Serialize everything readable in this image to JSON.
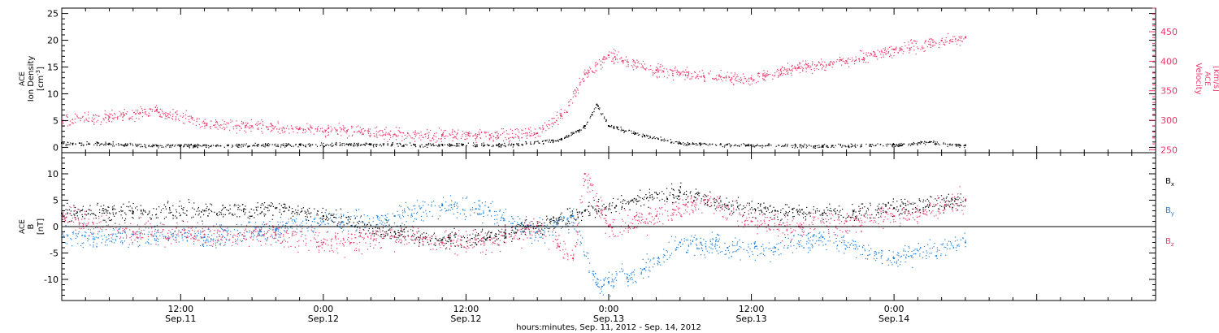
{
  "x_axis": {
    "ticks": [
      {
        "time": "Sep 11 12:00",
        "hour": 12,
        "label1": "12:00",
        "label2": "Sep.11"
      },
      {
        "time": "Sep 12 00:00",
        "hour": 24,
        "label1": "0:00",
        "label2": "Sep.12"
      },
      {
        "time": "Sep 12 12:00",
        "hour": 36,
        "label1": "12:00",
        "label2": "Sep.12"
      },
      {
        "time": "Sep 13 00:00",
        "hour": 48,
        "label1": "0:00",
        "label2": "Sep.13"
      },
      {
        "time": "Sep 13 12:00",
        "hour": 60,
        "label1": "12:00",
        "label2": "Sep.13"
      },
      {
        "time": "Sep 14 00:00",
        "hour": 72,
        "label1": "0:00",
        "label2": "Sep.14"
      }
    ],
    "title": "hours:minutes, Sep. 11, 2012 - Sep. 14, 2012",
    "range": [
      "Sep 11 02:00",
      "Sep 14 22:00"
    ]
  },
  "colors": {
    "density": "#000000",
    "velocity": "#e8386a",
    "bx": "#000000",
    "by": "#1a7ed8",
    "bz": "#e8386a"
  },
  "chart_data": [
    {
      "type": "scatter",
      "panel": "top",
      "left_axis": {
        "line1": "ACE",
        "line2": "Ion Density",
        "unit_base": "[cm",
        "unit_sup": "-3",
        "unit_end": "]",
        "ylim": [
          -1,
          26
        ],
        "ticks": [
          0,
          5,
          10,
          15,
          20,
          25
        ]
      },
      "right_axis": {
        "line1": "ACE",
        "line2": "Velocity",
        "unit": "[km/s]",
        "ylim": [
          245,
          490
        ],
        "ticks": [
          250,
          300,
          350,
          400,
          450
        ]
      },
      "series": [
        {
          "key": "density",
          "axis": "left",
          "x": [
            "Sep 11 02:00",
            "Sep 11 06:00",
            "Sep 11 10:00",
            "Sep 11 16:00",
            "Sep 11 22:00",
            "Sep 12 04:00",
            "Sep 12 10:00",
            "Sep 12 16:00",
            "Sep 12 20:00",
            "Sep 12 22:00",
            "Sep 12 23:00",
            "Sep 13 00:00",
            "Sep 13 03:00",
            "Sep 13 06:00",
            "Sep 13 12:00",
            "Sep 13 18:00",
            "Sep 14 00:00",
            "Sep 14 03:00",
            "Sep 14 06:00"
          ],
          "values": [
            0.8,
            0.7,
            0.3,
            0.4,
            0.5,
            0.6,
            0.5,
            0.5,
            1.5,
            4.0,
            8.0,
            4.0,
            2.2,
            0.8,
            0.4,
            0.3,
            0.5,
            1.0,
            0.4
          ]
        },
        {
          "key": "velocity",
          "axis": "right",
          "x": [
            "Sep 11 02:00",
            "Sep 11 06:00",
            "Sep 11 10:00",
            "Sep 11 14:00",
            "Sep 11 18:00",
            "Sep 11 22:00",
            "Sep 12 02:00",
            "Sep 12 06:00",
            "Sep 12 10:00",
            "Sep 12 14:00",
            "Sep 12 18:00",
            "Sep 12 20:00",
            "Sep 12 22:00",
            "Sep 13 00:00",
            "Sep 13 04:00",
            "Sep 13 08:00",
            "Sep 13 12:00",
            "Sep 13 16:00",
            "Sep 13 20:00",
            "Sep 14 00:00",
            "Sep 14 04:00",
            "Sep 14 06:00"
          ],
          "values": [
            300,
            305,
            318,
            295,
            290,
            285,
            282,
            276,
            275,
            275,
            278,
            308,
            378,
            410,
            385,
            375,
            370,
            390,
            400,
            420,
            435,
            440
          ]
        }
      ]
    },
    {
      "type": "scatter",
      "panel": "bottom",
      "left_axis": {
        "line1": "ACE",
        "line2": "B",
        "unit": "[nT]",
        "ylim": [
          -14,
          14
        ],
        "ticks": [
          -10,
          -5,
          0,
          5,
          10
        ]
      },
      "legend": [
        {
          "key": "bx",
          "text": "B",
          "sub": "x"
        },
        {
          "key": "by",
          "text": "B",
          "sub": "y"
        },
        {
          "key": "bz",
          "text": "B",
          "sub": "z"
        }
      ],
      "series": [
        {
          "key": "bx",
          "x": [
            "Sep 11 02:00",
            "Sep 11 08:00",
            "Sep 11 14:00",
            "Sep 11 20:00",
            "Sep 12 00:00",
            "Sep 12 06:00",
            "Sep 12 10:00",
            "Sep 12 14:00",
            "Sep 12 18:00",
            "Sep 12 22:00",
            "Sep 13 02:00",
            "Sep 13 06:00",
            "Sep 13 10:00",
            "Sep 13 14:00",
            "Sep 13 18:00",
            "Sep 14 00:00",
            "Sep 14 06:00"
          ],
          "values": [
            2.5,
            2.8,
            3.0,
            3.5,
            2.0,
            -1.0,
            -2.5,
            -2.0,
            0.0,
            3.0,
            5.0,
            6.5,
            4.0,
            3.0,
            2.5,
            3.5,
            5.0
          ]
        },
        {
          "key": "by",
          "x": [
            "Sep 11 02:00",
            "Sep 11 08:00",
            "Sep 11 14:00",
            "Sep 11 20:00",
            "Sep 12 00:00",
            "Sep 12 06:00",
            "Sep 12 10:00",
            "Sep 12 14:00",
            "Sep 12 18:00",
            "Sep 12 21:00",
            "Sep 12 23:00",
            "Sep 13 00:00",
            "Sep 13 03:00",
            "Sep 13 06:00",
            "Sep 13 10:00",
            "Sep 13 14:00",
            "Sep 13 18:00",
            "Sep 14 00:00",
            "Sep 14 06:00"
          ],
          "values": [
            -2.0,
            -1.5,
            -2.0,
            -0.5,
            1.0,
            2.0,
            4.0,
            3.0,
            -1.0,
            2.0,
            -11.0,
            -10.5,
            -8.0,
            -3.0,
            -4.0,
            -4.0,
            -2.0,
            -6.0,
            -3.0
          ]
        },
        {
          "key": "bz",
          "x": [
            "Sep 11 02:00",
            "Sep 11 08:00",
            "Sep 11 14:00",
            "Sep 11 20:00",
            "Sep 12 00:00",
            "Sep 12 06:00",
            "Sep 12 10:00",
            "Sep 12 14:00",
            "Sep 12 18:00",
            "Sep 12 21:00",
            "Sep 12 22:00",
            "Sep 13 00:00",
            "Sep 13 04:00",
            "Sep 13 08:00",
            "Sep 13 12:00",
            "Sep 13 16:00",
            "Sep 13 20:00",
            "Sep 14 00:00",
            "Sep 14 06:00"
          ],
          "values": [
            2.0,
            -1.0,
            -1.5,
            -1.5,
            -3.0,
            -2.0,
            -3.0,
            -2.5,
            0.0,
            -6.0,
            10.0,
            0.0,
            2.0,
            5.0,
            1.0,
            0.0,
            1.0,
            2.0,
            5.0
          ]
        }
      ]
    }
  ]
}
